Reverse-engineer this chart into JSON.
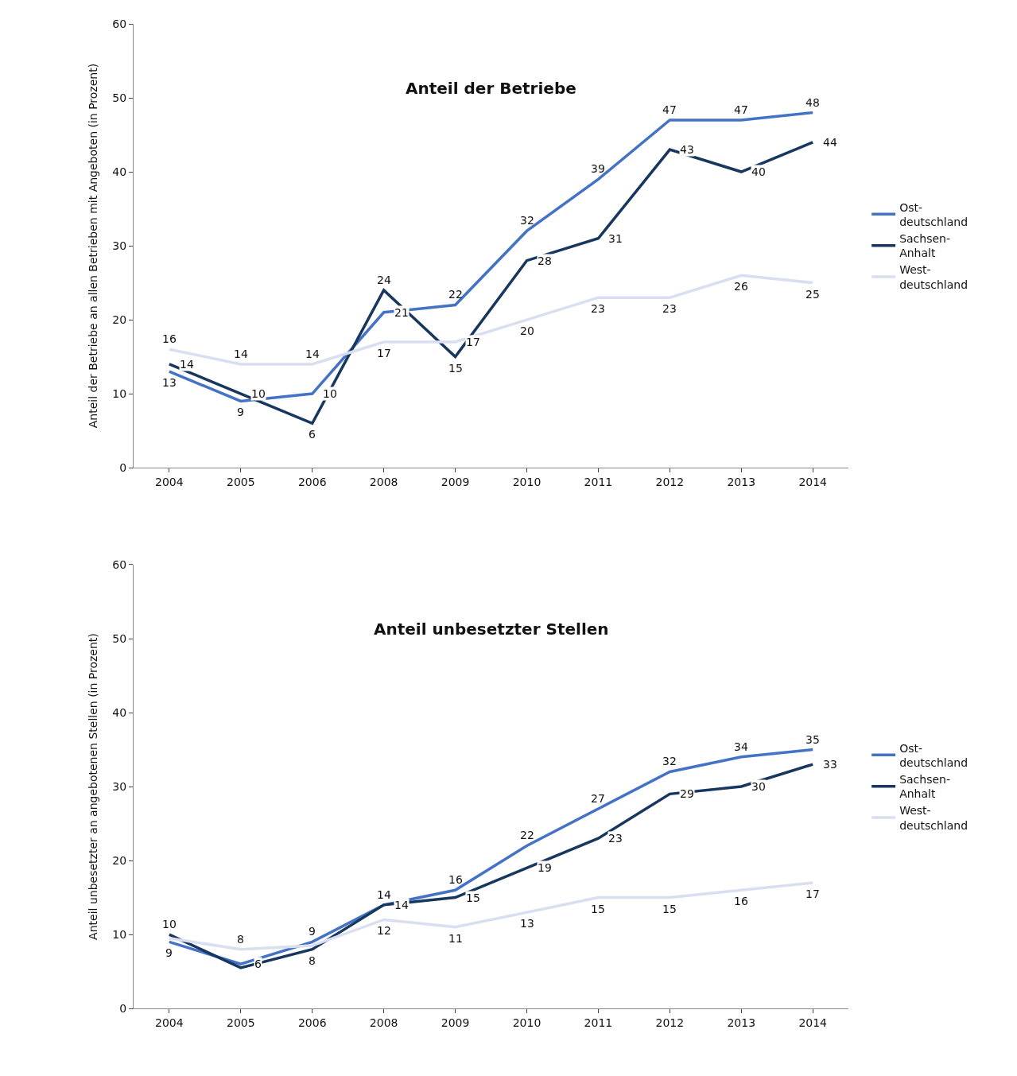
{
  "chart_data": [
    {
      "type": "line",
      "title": "Anteil der Betriebe",
      "ylabel": "Anteil der Betriebe an allen Betrieben mit Angeboten (in Prozent)",
      "categories": [
        "2004",
        "2005",
        "2006",
        "2008",
        "2009",
        "2010",
        "2011",
        "2012",
        "2013",
        "2014"
      ],
      "series": [
        {
          "name": "Ost-deutschland",
          "color": "#4472c4",
          "values": [
            13,
            9,
            10,
            21,
            22,
            32,
            39,
            47,
            47,
            48
          ]
        },
        {
          "name": "Sachsen-Anhalt",
          "color": "#17375e",
          "values": [
            14,
            10,
            6,
            24,
            15,
            28,
            31,
            43,
            40,
            44
          ]
        },
        {
          "name": "West-deutschland",
          "color": "#d9dff0",
          "values": [
            16,
            14,
            14,
            17,
            17,
            20,
            23,
            23,
            26,
            25
          ]
        }
      ],
      "data_labels": true,
      "ylim": [
        0,
        60
      ],
      "yticks": [
        0,
        10,
        20,
        30,
        40,
        50,
        60
      ],
      "grid": false,
      "legend": "right",
      "marker": "none",
      "line_style": "solid"
    },
    {
      "type": "line",
      "title": "Anteil unbesetzter Stellen",
      "ylabel": "Anteil unbesetzter an angebotenen Stellen (in Prozent)",
      "categories": [
        "2004",
        "2005",
        "2006",
        "2008",
        "2009",
        "2010",
        "2011",
        "2012",
        "2013",
        "2014"
      ],
      "series": [
        {
          "name": "Ost-deutschland",
          "color": "#4472c4",
          "values": [
            9,
            6,
            9,
            14,
            16,
            22,
            27,
            32,
            34,
            35
          ],
          "value_labels": [
            "9",
            "6",
            "9",
            "14",
            "16",
            "22",
            "27",
            "32",
            "34",
            "35"
          ]
        },
        {
          "name": "Sachsen-Anhalt",
          "color": "#17375e",
          "values": [
            10,
            5.5,
            8,
            14,
            15,
            19,
            23,
            29,
            30,
            33
          ],
          "value_labels": [
            "10",
            null,
            "8",
            "14",
            "15",
            "19",
            "23",
            "29",
            "30",
            "33"
          ]
        },
        {
          "name": "West-deutschland",
          "color": "#d9dff0",
          "values": [
            9.5,
            8,
            8.5,
            12,
            11,
            13,
            15,
            15,
            16,
            17
          ],
          "value_labels": [
            null,
            "8",
            null,
            "12",
            "11",
            "13",
            "15",
            "15",
            "16",
            "17"
          ]
        }
      ],
      "ylim": [
        0,
        60
      ],
      "yticks": [
        0,
        10,
        20,
        30,
        40,
        50,
        60
      ],
      "grid": false,
      "legend": "right",
      "marker": "none",
      "line_style": "solid"
    }
  ]
}
